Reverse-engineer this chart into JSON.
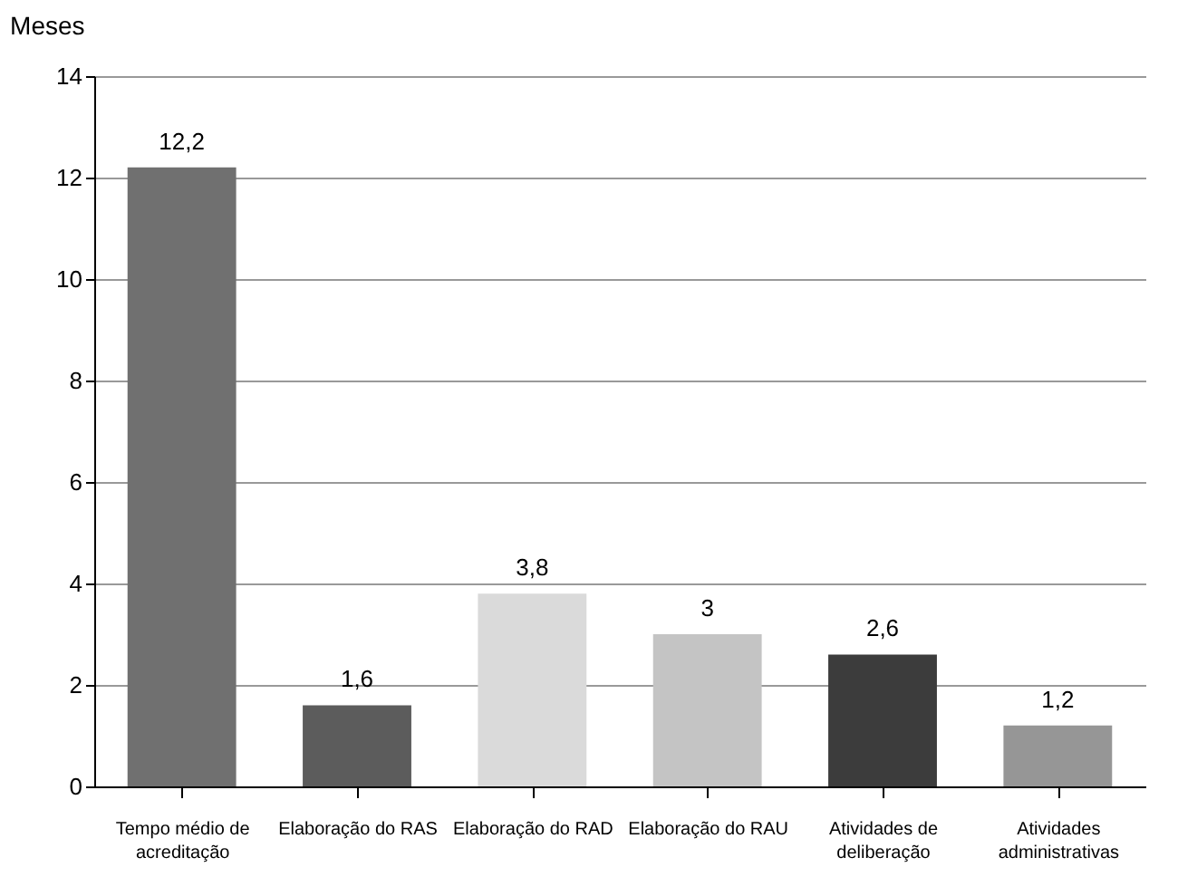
{
  "chart_data": {
    "type": "bar",
    "ylabel": "Meses",
    "categories": [
      "Tempo médio de acreditação",
      "Elaboração do RAS",
      "Elaboração do RAD",
      "Elaboração do RAU",
      "Atividades de deliberação",
      "Atividades administrativas"
    ],
    "values": [
      12.2,
      1.6,
      3.8,
      3,
      2.6,
      1.2
    ],
    "value_labels": [
      "12,2",
      "1,6",
      "3,8",
      "3",
      "2,6",
      "1,2"
    ],
    "colors": [
      "#707070",
      "#5c5c5c",
      "#dadada",
      "#c4c4c4",
      "#3c3c3c",
      "#969696"
    ],
    "ylim": [
      0,
      14
    ],
    "yticks": [
      0,
      2,
      4,
      6,
      8,
      10,
      12,
      14
    ],
    "grid": "y"
  }
}
